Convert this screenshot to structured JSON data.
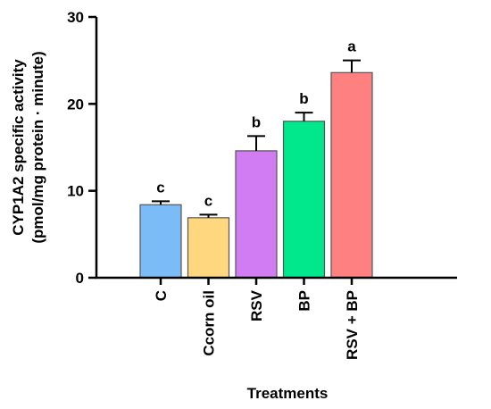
{
  "chart_data": {
    "type": "bar",
    "title": "",
    "xlabel": "Treatments",
    "ylabel_line1": "CYP1A2 specific activity",
    "ylabel_line2": "(pmol/mg protein · minute)",
    "ylim": [
      0,
      30
    ],
    "yticks": [
      0,
      10,
      20,
      30
    ],
    "grid": false,
    "categories": [
      "C",
      "Ccorn oil",
      "RSV",
      "BP",
      "RSV + BP"
    ],
    "values": [
      8.4,
      6.9,
      14.6,
      18.0,
      23.6
    ],
    "errors": [
      0.4,
      0.35,
      1.7,
      1.0,
      1.4
    ],
    "significance": [
      "c",
      "c",
      "b",
      "b",
      "a"
    ],
    "colors": [
      "#7cbcf6",
      "#ffd77f",
      "#d17cf3",
      "#00e78c",
      "#ff8080"
    ]
  }
}
